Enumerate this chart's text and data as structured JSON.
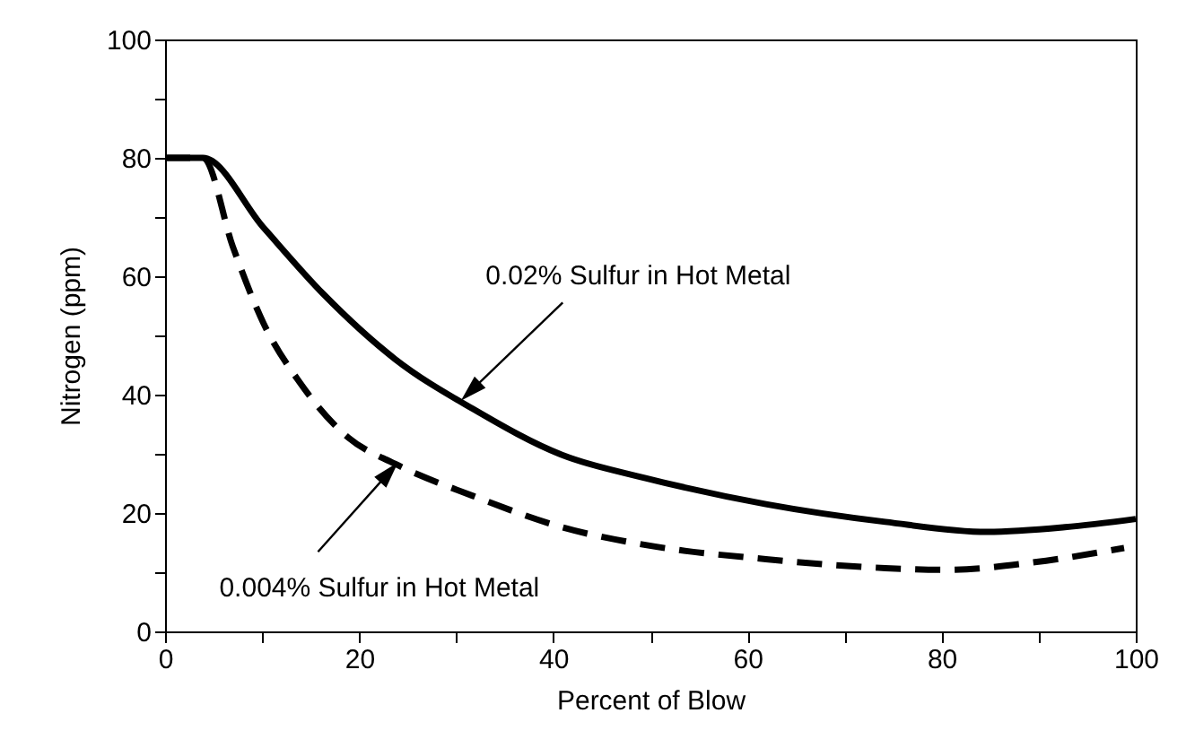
{
  "chart_data": {
    "type": "line",
    "xlabel": "Percent of Blow",
    "ylabel": "Nitrogen (ppm)",
    "xlim": [
      0,
      100
    ],
    "ylim": [
      0,
      100
    ],
    "xticks": [
      0,
      {
        "value": 10,
        "label": null
      },
      20,
      {
        "value": 30,
        "label": null
      },
      40,
      {
        "value": 50,
        "label": null
      },
      60,
      {
        "value": 70,
        "label": null
      },
      80,
      {
        "value": 90,
        "label": null
      },
      100
    ],
    "yticks": [
      0,
      {
        "value": 10,
        "label": null
      },
      20,
      {
        "value": 30,
        "label": null
      },
      40,
      {
        "value": 50,
        "label": null
      },
      60,
      {
        "value": 70,
        "label": null
      },
      80,
      {
        "value": 90,
        "label": null
      },
      100
    ],
    "grid": false,
    "marker": "none",
    "series": [
      {
        "color": "#000000",
        "line_style": "solid",
        "x": [
          0,
          3.9,
          10.1,
          16.3,
          23.7,
          31.7,
          40.9,
          49.5,
          61.9,
          74.2,
          84.7,
          92.7,
          100
        ],
        "values": [
          80,
          80,
          68.3,
          57,
          46,
          37.6,
          29.8,
          25.9,
          21.5,
          18.5,
          16.8,
          17.6,
          19
        ]
      },
      {
        "color": "#000000",
        "line_style": "dashed",
        "x": [
          0,
          3.9,
          7.0,
          10.1,
          13.9,
          18.9,
          23.7,
          31.7,
          40.9,
          49.5,
          61.9,
          74.2,
          80.4,
          89.6,
          98.8
        ],
        "values": [
          80,
          80,
          64.9,
          52.2,
          42,
          32.7,
          28.3,
          22.9,
          17.6,
          14.6,
          12.2,
          10.7,
          10.4,
          11.7,
          14.1
        ]
      }
    ],
    "annotations": [
      {
        "text": "0.02% Sulfur in Hot Metal",
        "x": 30.8,
        "y": 39.5
      },
      {
        "text": "0.004% Sulfur in Hot Metal",
        "x": 23.7,
        "y": 28
      }
    ]
  }
}
